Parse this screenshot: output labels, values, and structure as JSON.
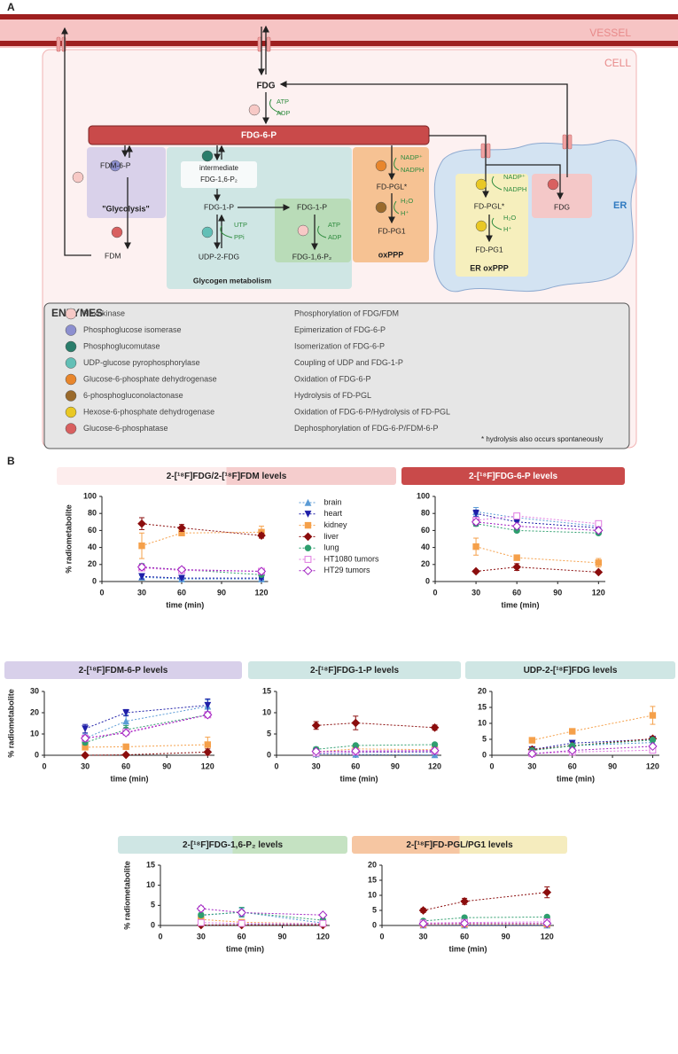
{
  "figure": {
    "panel_a": "A",
    "panel_b": "B"
  },
  "diagram": {
    "vessel": "VESSEL",
    "cell": "CELL",
    "fdg": "FDG",
    "atp1": "ATP",
    "adp1": "ADP",
    "fdg6p": "FDG-6-P",
    "fdm6p": "FDM-6-P",
    "glycolysis": "\"Glycolysis\"",
    "fdm": "FDM",
    "intermediate": "intermediate",
    "fdg16p2_a": "FDG-1,6-P₂",
    "fdg1p_a": "FDG-1-P",
    "utp": "UTP",
    "ppi": "PPi",
    "udp2fdg": "UDP-2-FDG",
    "glycogen": "Glycogen metabolism",
    "fdg1p_b": "FDG-1-P",
    "atp2": "ATP",
    "adp2": "ADP",
    "fdg16p2_b": "FDG-1,6-P₂",
    "nadp1": "NADP⁺",
    "nadph1": "NADPH",
    "fdpgl1": "FD-PGL*",
    "h2o1": "H₂O",
    "h1": "H⁺",
    "fdpg1_1": "FD-PG1",
    "oxppp": "oxPPP",
    "nadp2": "NADP⁺",
    "nadph2": "NADPH",
    "fdpgl2": "FD-PGL*",
    "h2o2": "H₂O",
    "h2": "H⁺",
    "fdpg1_2": "FD-PG1",
    "er_oxppp": "ER oxPPP",
    "fdg_er": "FDG",
    "er": "ER",
    "enzymes": {
      "title": "ENZYMES",
      "footnote": "* hydrolysis also occurs spontaneously",
      "rows": [
        {
          "name": "Hexokinase",
          "function": "Phosphorylation of FDG/FDM",
          "color": "#f7c9c6"
        },
        {
          "name": "Phosphoglucose isomerase",
          "function": "Epimerization of FDG-6-P",
          "color": "#8c8fcf"
        },
        {
          "name": "Phosphoglucomutase",
          "function": "Isomerization of FDG-6-P",
          "color": "#2a7d6b"
        },
        {
          "name": "UDP-glucose pyrophosphorylase",
          "function": "Coupling of UDP and FDG-1-P",
          "color": "#62bfb6"
        },
        {
          "name": "Glucose-6-phosphate dehydrogenase",
          "function": "Oxidation of FDG-6-P",
          "color": "#e8862c"
        },
        {
          "name": "6-phosphogluconolactonase",
          "function": "Hydrolysis of FD-PGL",
          "color": "#9a6a2c"
        },
        {
          "name": "Hexose-6-phosphate dehydrogenase",
          "function": "Oxidation of FDG-6-P/Hydrolysis of FD-PGL",
          "color": "#e9c824"
        },
        {
          "name": "Glucose-6-phosphatase",
          "function": "Dephosphorylation of FDG-6-P/FDM-6-P",
          "color": "#d86060"
        }
      ]
    }
  },
  "chart_data": [
    {
      "type": "line",
      "title": "2-[¹⁸F]FDG/2-[¹⁸F]FDM levels",
      "title_colors": [
        "#fdeded",
        "#f5cdcd"
      ],
      "xlabel": "time (min)",
      "ylabel": "% radiometabolite",
      "x": [
        30,
        60,
        120
      ],
      "xlim": [
        0,
        125
      ],
      "xticks": [
        0,
        30,
        60,
        90,
        120
      ],
      "ylim": [
        0,
        100
      ],
      "yticks": [
        0,
        20,
        40,
        60,
        80,
        100
      ],
      "legend": "right",
      "series": [
        {
          "name": "brain",
          "color": "#5b9bd5",
          "marker": "triangle",
          "values": [
            5,
            3,
            3
          ],
          "errors": [
            2,
            1,
            1
          ]
        },
        {
          "name": "heart",
          "color": "#1f1fa8",
          "marker": "triangle-down",
          "values": [
            6,
            4,
            4
          ],
          "errors": [
            3,
            1,
            1
          ]
        },
        {
          "name": "kidney",
          "color": "#f5a04a",
          "marker": "square",
          "values": [
            42,
            57,
            58
          ],
          "errors": [
            15,
            3,
            7
          ]
        },
        {
          "name": "liver",
          "color": "#8b0d0d",
          "marker": "diamond",
          "values": [
            68,
            63,
            54
          ],
          "errors": [
            7,
            4,
            3
          ]
        },
        {
          "name": "lung",
          "color": "#2e9e6e",
          "marker": "circle",
          "values": [
            17,
            14,
            8
          ],
          "errors": [
            4,
            2,
            1
          ]
        },
        {
          "name": "HT1080 tumors",
          "color": "#e07ae0",
          "marker": "square-open",
          "values": [
            16,
            13,
            12
          ],
          "errors": [
            3,
            2,
            1
          ]
        },
        {
          "name": "HT29 tumors",
          "color": "#a020c0",
          "marker": "diamond-open",
          "values": [
            17,
            14,
            12
          ],
          "errors": [
            3,
            2,
            1
          ]
        }
      ]
    },
    {
      "type": "line",
      "title": "2-[¹⁸F]FDG-6-P levels",
      "title_colors": [
        "#c94a4a"
      ],
      "title_color": "#ffffff",
      "xlabel": "time (min)",
      "x": [
        30,
        60,
        120
      ],
      "xlim": [
        0,
        125
      ],
      "xticks": [
        0,
        30,
        60,
        90,
        120
      ],
      "ylim": [
        0,
        100
      ],
      "yticks": [
        0,
        20,
        40,
        60,
        80,
        100
      ],
      "series": [
        {
          "color": "#5b9bd5",
          "marker": "triangle",
          "values": [
            82,
            75,
            65
          ],
          "errors": [
            5,
            3,
            3
          ]
        },
        {
          "color": "#1f1fa8",
          "marker": "triangle-down",
          "values": [
            80,
            70,
            63
          ],
          "errors": [
            4,
            3,
            2
          ]
        },
        {
          "color": "#f5a04a",
          "marker": "square",
          "values": [
            41,
            28,
            22
          ],
          "errors": [
            10,
            3,
            5
          ]
        },
        {
          "color": "#8b0d0d",
          "marker": "diamond",
          "values": [
            12,
            17,
            11
          ],
          "errors": [
            1,
            4,
            1
          ]
        },
        {
          "color": "#2e9e6e",
          "marker": "circle",
          "values": [
            68,
            60,
            57
          ],
          "errors": [
            3,
            2,
            2
          ]
        },
        {
          "color": "#e07ae0",
          "marker": "square-open",
          "values": [
            72,
            77,
            68
          ],
          "errors": [
            3,
            3,
            3
          ]
        },
        {
          "color": "#a020c0",
          "marker": "diamond-open",
          "values": [
            70,
            65,
            60
          ],
          "errors": [
            3,
            2,
            2
          ]
        }
      ]
    },
    {
      "type": "line",
      "title": "2-[¹⁸F]FDM-6-P levels",
      "title_colors": [
        "#d8d0ea"
      ],
      "xlabel": "time (min)",
      "ylabel": "% radiometabolite",
      "x": [
        30,
        60,
        120
      ],
      "xlim": [
        0,
        125
      ],
      "xticks": [
        0,
        30,
        60,
        90,
        120
      ],
      "ylim": [
        0,
        30
      ],
      "yticks": [
        0,
        10,
        20,
        30
      ],
      "series": [
        {
          "color": "#5b9bd5",
          "marker": "triangle",
          "values": [
            8,
            16,
            23
          ],
          "errors": [
            2,
            3,
            3
          ]
        },
        {
          "color": "#1f1fa8",
          "marker": "triangle-down",
          "values": [
            12.5,
            20,
            23.5
          ],
          "errors": [
            2,
            1.5,
            3
          ]
        },
        {
          "color": "#f5a04a",
          "marker": "square",
          "values": [
            3.8,
            4,
            5
          ],
          "errors": [
            0.5,
            1,
            3.5
          ]
        },
        {
          "color": "#8b0d0d",
          "marker": "diamond",
          "values": [
            0,
            0.2,
            1.5
          ],
          "errors": [
            0,
            0,
            1.5
          ]
        },
        {
          "color": "#2e9e6e",
          "marker": "circle",
          "values": [
            6,
            12,
            19
          ],
          "errors": [
            1,
            2,
            1
          ]
        },
        {
          "color": "#e07ae0",
          "marker": "square-open",
          "values": [
            8,
            11,
            19
          ],
          "errors": [
            1,
            1,
            1
          ]
        },
        {
          "color": "#a020c0",
          "marker": "diamond-open",
          "values": [
            8,
            10.5,
            19
          ],
          "errors": [
            1,
            1,
            1
          ]
        }
      ]
    },
    {
      "type": "line",
      "title": "2-[¹⁸F]FDG-1-P levels",
      "title_colors": [
        "#cfe6e4"
      ],
      "xlabel": "time (min)",
      "x": [
        30,
        60,
        120
      ],
      "xlim": [
        0,
        125
      ],
      "xticks": [
        0,
        30,
        60,
        90,
        120
      ],
      "ylim": [
        0,
        15
      ],
      "yticks": [
        0,
        5,
        10,
        15
      ],
      "series": [
        {
          "color": "#5b9bd5",
          "marker": "triangle",
          "values": [
            0.3,
            0.2,
            0.1
          ],
          "errors": [
            0.3,
            0.2,
            0.2
          ]
        },
        {
          "color": "#1f1fa8",
          "marker": "triangle-down",
          "values": [
            0.5,
            0.7,
            0.8
          ],
          "errors": [
            0.3,
            0.3,
            0.3
          ]
        },
        {
          "color": "#f5a04a",
          "marker": "square",
          "values": [
            0.8,
            1.5,
            1.3
          ],
          "errors": [
            0.4,
            0.5,
            0.4
          ]
        },
        {
          "color": "#8b0d0d",
          "marker": "diamond",
          "values": [
            7,
            7.6,
            6.5
          ],
          "errors": [
            0.9,
            1.6,
            0.6
          ]
        },
        {
          "color": "#2e9e6e",
          "marker": "circle",
          "values": [
            1.4,
            2.3,
            2.5
          ],
          "errors": [
            0.5,
            0.3,
            0.2
          ]
        },
        {
          "color": "#e07ae0",
          "marker": "square-open",
          "values": [
            0.5,
            0.8,
            1
          ],
          "errors": [
            0.2,
            0.2,
            0.2
          ]
        },
        {
          "color": "#a020c0",
          "marker": "diamond-open",
          "values": [
            0.9,
            1,
            1.1
          ],
          "errors": [
            0.3,
            0.2,
            0.2
          ]
        }
      ]
    },
    {
      "type": "line",
      "title": "UDP-2-[¹⁸F]FDG levels",
      "title_colors": [
        "#cfe6e4"
      ],
      "xlabel": "time (min)",
      "x": [
        30,
        60,
        120
      ],
      "xlim": [
        0,
        125
      ],
      "xticks": [
        0,
        30,
        60,
        90,
        120
      ],
      "ylim": [
        0,
        20
      ],
      "yticks": [
        0,
        5,
        10,
        15,
        20
      ],
      "series": [
        {
          "color": "#5b9bd5",
          "marker": "triangle",
          "values": [
            1.5,
            3,
            4
          ],
          "errors": [
            0.3,
            0.3,
            0.5
          ]
        },
        {
          "color": "#1f1fa8",
          "marker": "triangle-down",
          "values": [
            1.8,
            3.8,
            5
          ],
          "errors": [
            0.3,
            0.4,
            0.4
          ]
        },
        {
          "color": "#f5a04a",
          "marker": "square",
          "values": [
            4.7,
            7.5,
            12.5
          ],
          "errors": [
            0.3,
            0.5,
            2.8
          ]
        },
        {
          "color": "#8b0d0d",
          "marker": "diamond",
          "values": [
            1.8,
            3,
            5.2
          ],
          "errors": [
            0.2,
            0.3,
            0.4
          ]
        },
        {
          "color": "#2e9e6e",
          "marker": "circle",
          "values": [
            1.5,
            3,
            4.8
          ],
          "errors": [
            0.2,
            0.3,
            0.3
          ]
        },
        {
          "color": "#e07ae0",
          "marker": "square-open",
          "values": [
            0.5,
            1,
            1.6
          ],
          "errors": [
            0.2,
            0.2,
            0.2
          ]
        },
        {
          "color": "#a020c0",
          "marker": "diamond-open",
          "values": [
            0.5,
            1.5,
            2.8
          ],
          "errors": [
            0.2,
            0.2,
            0.3
          ]
        }
      ]
    },
    {
      "type": "line",
      "title": "2-[¹⁸F]FDG-1,6-P₂ levels",
      "title_colors": [
        "#cfe6e4",
        "#c5e2c2"
      ],
      "xlabel": "time (min)",
      "ylabel": "% radiometabolite",
      "x": [
        30,
        60,
        120
      ],
      "xlim": [
        0,
        125
      ],
      "xticks": [
        0,
        30,
        60,
        90,
        120
      ],
      "ylim": [
        0,
        15
      ],
      "yticks": [
        0,
        5,
        10,
        15
      ],
      "series": [
        {
          "color": "#5b9bd5",
          "marker": "triangle",
          "values": [
            2.5,
            3.3,
            0.6
          ],
          "errors": [
            0.5,
            1,
            0.3
          ]
        },
        {
          "color": "#1f1fa8",
          "marker": "triangle-down",
          "values": [
            0.1,
            0.2,
            0.2
          ],
          "errors": [
            0.1,
            0.1,
            0.1
          ]
        },
        {
          "color": "#f5a04a",
          "marker": "square",
          "values": [
            1.5,
            0.8,
            0.4
          ],
          "errors": [
            0.5,
            0.3,
            0.2
          ]
        },
        {
          "color": "#8b0d0d",
          "marker": "diamond",
          "values": [
            0.1,
            0.1,
            0.1
          ],
          "errors": [
            0,
            0,
            0
          ]
        },
        {
          "color": "#2e9e6e",
          "marker": "circle",
          "values": [
            2.6,
            3.3,
            1.3
          ],
          "errors": [
            0.5,
            1.2,
            0.5
          ]
        },
        {
          "color": "#e07ae0",
          "marker": "square-open",
          "values": [
            0.7,
            0.5,
            0.5
          ],
          "errors": [
            0.2,
            0.2,
            0.2
          ]
        },
        {
          "color": "#a020c0",
          "marker": "diamond-open",
          "values": [
            4.2,
            3.2,
            2.6
          ],
          "errors": [
            0.6,
            0.5,
            0.4
          ]
        }
      ]
    },
    {
      "type": "line",
      "title": "2-[¹⁸F]FD-PGL/PG1 levels",
      "title_colors": [
        "#f6c6a2",
        "#f5ecbe"
      ],
      "xlabel": "time (min)",
      "x": [
        30,
        60,
        120
      ],
      "xlim": [
        0,
        125
      ],
      "xticks": [
        0,
        30,
        60,
        90,
        120
      ],
      "ylim": [
        0,
        20
      ],
      "yticks": [
        0,
        5,
        10,
        15,
        20
      ],
      "series": [
        {
          "color": "#5b9bd5",
          "marker": "triangle",
          "values": [
            0.1,
            0.1,
            0.1
          ],
          "errors": [
            0.1,
            0.1,
            0.1
          ]
        },
        {
          "color": "#1f1fa8",
          "marker": "triangle-down",
          "values": [
            0.2,
            0.2,
            0.2
          ],
          "errors": [
            0.1,
            0.1,
            0.1
          ]
        },
        {
          "color": "#f5a04a",
          "marker": "square",
          "values": [
            0.3,
            0.4,
            0.4
          ],
          "errors": [
            0.1,
            0.1,
            0.1
          ]
        },
        {
          "color": "#8b0d0d",
          "marker": "diamond",
          "values": [
            5,
            8,
            11
          ],
          "errors": [
            0.7,
            1,
            1.8
          ]
        },
        {
          "color": "#2e9e6e",
          "marker": "circle",
          "values": [
            1.5,
            2.6,
            2.8
          ],
          "errors": [
            0.2,
            0.2,
            0.5
          ]
        },
        {
          "color": "#e07ae0",
          "marker": "square-open",
          "values": [
            0.8,
            1,
            1.2
          ],
          "errors": [
            0.2,
            0.2,
            0.2
          ]
        },
        {
          "color": "#a020c0",
          "marker": "diamond-open",
          "values": [
            0.6,
            0.7,
            0.7
          ],
          "errors": [
            0.2,
            0.2,
            0.2
          ]
        }
      ]
    }
  ]
}
